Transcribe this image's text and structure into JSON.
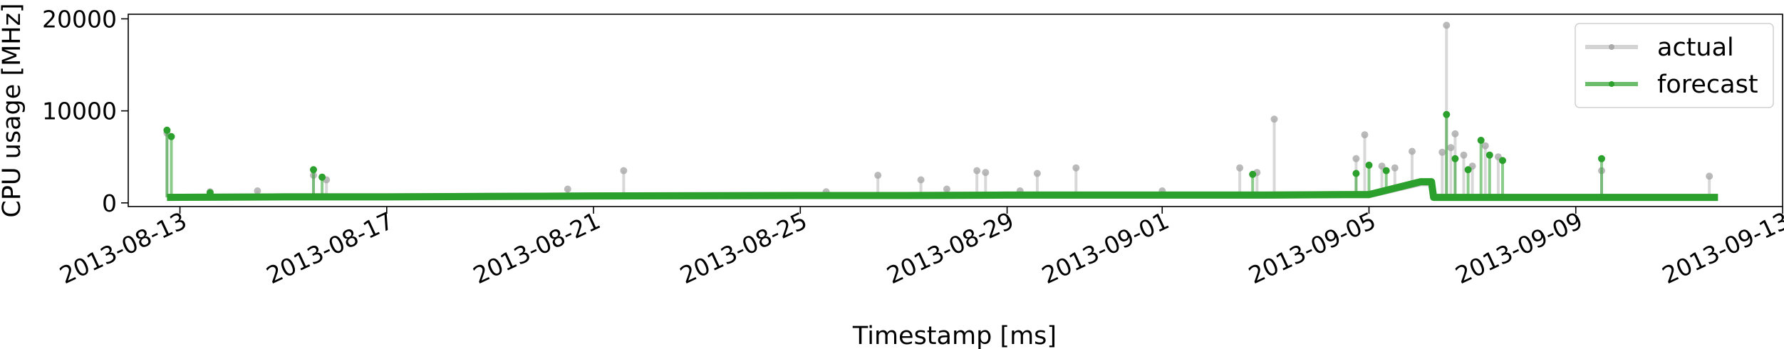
{
  "chart_data": {
    "type": "line",
    "title": "",
    "xlabel": "Timestamp [ms]",
    "ylabel": "CPU usage [MHz]",
    "ylim": [
      -400,
      20500
    ],
    "xlim": [
      "2013-08-12",
      "2013-09-13"
    ],
    "yticks": [
      0,
      10000,
      20000
    ],
    "xticks": [
      "2013-08-13",
      "2013-08-17",
      "2013-08-21",
      "2013-08-25",
      "2013-08-29",
      "2013-09-01",
      "2013-09-05",
      "2013-09-09",
      "2013-09-13"
    ],
    "grid": false,
    "legend_position": "top-right",
    "series": [
      {
        "name": "actual",
        "color": "#a9a9a9",
        "baseline": [
          {
            "x": "2013-08-12T18:00",
            "y": 600
          },
          {
            "x": "2013-08-15T00:00",
            "y": 650
          },
          {
            "x": "2013-08-17T00:00",
            "y": 650
          },
          {
            "x": "2013-08-19T00:00",
            "y": 700
          },
          {
            "x": "2013-08-21T00:00",
            "y": 750
          },
          {
            "x": "2013-08-25T00:00",
            "y": 800
          },
          {
            "x": "2013-08-27T00:00",
            "y": 800
          },
          {
            "x": "2013-08-29T00:00",
            "y": 850
          },
          {
            "x": "2013-09-01T00:00",
            "y": 850
          },
          {
            "x": "2013-09-03T00:00",
            "y": 850
          },
          {
            "x": "2013-09-04T12:00",
            "y": 900
          },
          {
            "x": "2013-09-05T00:00",
            "y": 900
          },
          {
            "x": "2013-09-06T00:00",
            "y": 2200
          },
          {
            "x": "2013-09-06T05:00",
            "y": 2200
          },
          {
            "x": "2013-09-06T06:00",
            "y": 600
          },
          {
            "x": "2013-09-09T00:00",
            "y": 600
          },
          {
            "x": "2013-09-11T00:00",
            "y": 600
          },
          {
            "x": "2013-09-11T18:00",
            "y": 600
          }
        ],
        "spikes": [
          {
            "x": "2013-08-12T18:00",
            "y": 7600
          },
          {
            "x": "2013-08-13T14:00",
            "y": 1200
          },
          {
            "x": "2013-08-14T12:00",
            "y": 1300
          },
          {
            "x": "2013-08-15T14:00",
            "y": 3000
          },
          {
            "x": "2013-08-15T20:00",
            "y": 2500
          },
          {
            "x": "2013-08-20T12:00",
            "y": 1500
          },
          {
            "x": "2013-08-21T14:00",
            "y": 3500
          },
          {
            "x": "2013-08-25T12:00",
            "y": 1200
          },
          {
            "x": "2013-08-26T12:00",
            "y": 3000
          },
          {
            "x": "2013-08-27T08:00",
            "y": 2500
          },
          {
            "x": "2013-08-27T20:00",
            "y": 1500
          },
          {
            "x": "2013-08-28T10:00",
            "y": 3500
          },
          {
            "x": "2013-08-28T14:00",
            "y": 3300
          },
          {
            "x": "2013-08-29T06:00",
            "y": 1300
          },
          {
            "x": "2013-08-29T14:00",
            "y": 3200
          },
          {
            "x": "2013-08-30T08:00",
            "y": 3800
          },
          {
            "x": "2013-09-01T00:00",
            "y": 1300
          },
          {
            "x": "2013-09-02T12:00",
            "y": 3800
          },
          {
            "x": "2013-09-02T20:00",
            "y": 3300
          },
          {
            "x": "2013-09-03T04:00",
            "y": 9100
          },
          {
            "x": "2013-09-04T18:00",
            "y": 4800
          },
          {
            "x": "2013-09-04T22:00",
            "y": 7400
          },
          {
            "x": "2013-09-05T06:00",
            "y": 4000
          },
          {
            "x": "2013-09-05T12:00",
            "y": 3800
          },
          {
            "x": "2013-09-05T20:00",
            "y": 5600
          },
          {
            "x": "2013-09-06T12:00",
            "y": 19300
          },
          {
            "x": "2013-09-06T16:00",
            "y": 7500
          },
          {
            "x": "2013-09-06T20:00",
            "y": 5200
          },
          {
            "x": "2013-09-06T10:00",
            "y": 5500
          },
          {
            "x": "2013-09-06T14:00",
            "y": 6000
          },
          {
            "x": "2013-09-07T00:00",
            "y": 4000
          },
          {
            "x": "2013-09-07T06:00",
            "y": 6200
          },
          {
            "x": "2013-09-07T12:00",
            "y": 5000
          },
          {
            "x": "2013-09-09T12:00",
            "y": 3500
          },
          {
            "x": "2013-09-11T14:00",
            "y": 2900
          }
        ]
      },
      {
        "name": "forecast",
        "color": "#2ca02c",
        "baseline": [
          {
            "x": "2013-08-12T18:00",
            "y": 600
          },
          {
            "x": "2013-08-15T00:00",
            "y": 650
          },
          {
            "x": "2013-08-17T00:00",
            "y": 650
          },
          {
            "x": "2013-08-19T00:00",
            "y": 700
          },
          {
            "x": "2013-08-21T00:00",
            "y": 750
          },
          {
            "x": "2013-08-25T00:00",
            "y": 800
          },
          {
            "x": "2013-08-27T00:00",
            "y": 800
          },
          {
            "x": "2013-08-29T00:00",
            "y": 850
          },
          {
            "x": "2013-09-01T00:00",
            "y": 850
          },
          {
            "x": "2013-09-03T00:00",
            "y": 850
          },
          {
            "x": "2013-09-04T12:00",
            "y": 900
          },
          {
            "x": "2013-09-05T00:00",
            "y": 900
          },
          {
            "x": "2013-09-06T00:00",
            "y": 2300
          },
          {
            "x": "2013-09-06T05:00",
            "y": 2300
          },
          {
            "x": "2013-09-06T06:00",
            "y": 600
          },
          {
            "x": "2013-09-09T00:00",
            "y": 600
          },
          {
            "x": "2013-09-11T00:00",
            "y": 600
          },
          {
            "x": "2013-09-11T18:00",
            "y": 600
          }
        ],
        "spikes": [
          {
            "x": "2013-08-12T18:00",
            "y": 7900
          },
          {
            "x": "2013-08-12T20:00",
            "y": 7200
          },
          {
            "x": "2013-08-13T14:00",
            "y": 1100
          },
          {
            "x": "2013-08-15T14:00",
            "y": 3600
          },
          {
            "x": "2013-08-15T18:00",
            "y": 2800
          },
          {
            "x": "2013-09-02T18:00",
            "y": 3100
          },
          {
            "x": "2013-09-04T18:00",
            "y": 3200
          },
          {
            "x": "2013-09-05T00:00",
            "y": 4100
          },
          {
            "x": "2013-09-05T08:00",
            "y": 3500
          },
          {
            "x": "2013-09-06T12:00",
            "y": 9600
          },
          {
            "x": "2013-09-06T16:00",
            "y": 4800
          },
          {
            "x": "2013-09-06T22:00",
            "y": 3600
          },
          {
            "x": "2013-09-07T04:00",
            "y": 6800
          },
          {
            "x": "2013-09-07T08:00",
            "y": 5200
          },
          {
            "x": "2013-09-07T14:00",
            "y": 4600
          },
          {
            "x": "2013-09-09T12:00",
            "y": 4800
          }
        ]
      }
    ]
  }
}
